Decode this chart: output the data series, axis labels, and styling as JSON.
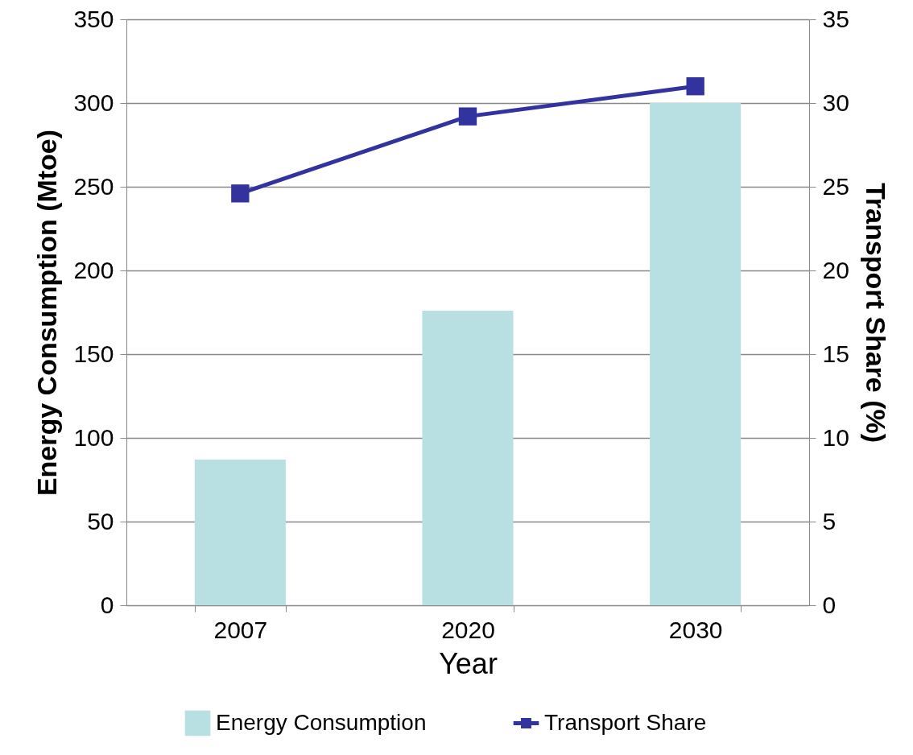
{
  "chart_data": {
    "type": "bar",
    "xlabel": "Year",
    "ylabel": "Energy Consumption (Mtoe)",
    "y2label": "Transport Share (%)",
    "categories": [
      "2007",
      "2020",
      "2030"
    ],
    "series": [
      {
        "name": "Energy Consumption",
        "color": "#b8dfe1",
        "values": [
          87,
          176,
          300
        ]
      },
      {
        "name": "Transport Share",
        "type": "line",
        "axis": "y2",
        "color": "#3333a0",
        "marker": "square",
        "values": [
          24.6,
          29.2,
          31.0
        ]
      }
    ],
    "ylim": [
      0,
      350
    ],
    "yticks": [
      0,
      50,
      100,
      150,
      200,
      250,
      300,
      350
    ],
    "y2lim": [
      0,
      35
    ],
    "y2ticks": [
      0,
      5,
      10,
      15,
      20,
      25,
      30,
      35
    ],
    "grid": "y",
    "legend": "bottom"
  }
}
